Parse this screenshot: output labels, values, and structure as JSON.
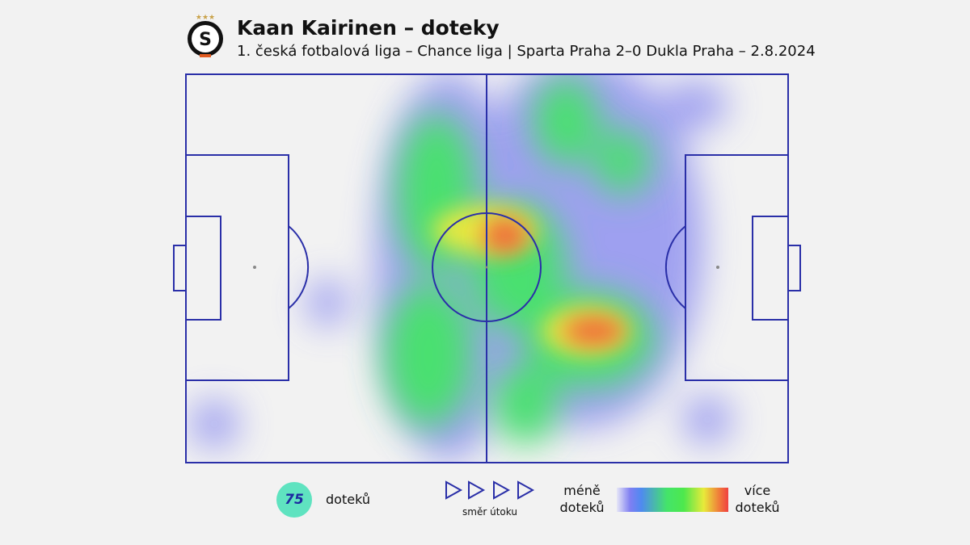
{
  "header": {
    "title": "Kaan Kairinen – doteky",
    "subtitle": "1. česká fotbalová liga – Chance liga | Sparta Praha 2–0 Dukla Praha – 2.8.2024"
  },
  "stats": {
    "touches": 75,
    "touches_label": "doteků"
  },
  "direction_label": "směr útoku",
  "legend": {
    "less": "méně doteků",
    "more": "více doteků"
  }
}
